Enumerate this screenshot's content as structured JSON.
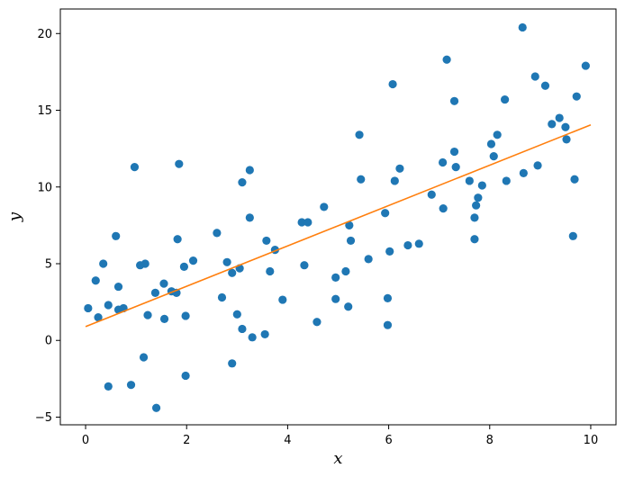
{
  "chart_data": {
    "type": "scatter",
    "title": "",
    "xlabel": "x",
    "ylabel": "y",
    "xlim": [
      -0.5,
      10.5
    ],
    "ylim": [
      -5.5,
      21.6
    ],
    "xticks": [
      0,
      2,
      4,
      6,
      8,
      10
    ],
    "xtick_labels": [
      "0",
      "2",
      "4",
      "6",
      "8",
      "10"
    ],
    "yticks": [
      -5,
      0,
      5,
      10,
      15,
      20
    ],
    "ytick_labels": [
      "−5",
      "0",
      "5",
      "10",
      "15",
      "20"
    ],
    "grid": false,
    "legend": "none",
    "series": [
      {
        "kind": "scatter",
        "color": "#1f77b4",
        "points": [
          [
            0.05,
            2.1
          ],
          [
            0.2,
            3.9
          ],
          [
            0.25,
            1.5
          ],
          [
            0.35,
            5.0
          ],
          [
            0.45,
            -3.0
          ],
          [
            0.45,
            2.3
          ],
          [
            0.6,
            6.8
          ],
          [
            0.65,
            3.5
          ],
          [
            0.65,
            2.0
          ],
          [
            0.75,
            2.1
          ],
          [
            0.9,
            -2.9
          ],
          [
            0.97,
            11.3
          ],
          [
            1.08,
            4.9
          ],
          [
            1.15,
            -1.1
          ],
          [
            1.18,
            5.0
          ],
          [
            1.23,
            1.65
          ],
          [
            1.38,
            3.1
          ],
          [
            1.4,
            -4.4
          ],
          [
            1.55,
            3.7
          ],
          [
            1.56,
            1.4
          ],
          [
            1.7,
            3.2
          ],
          [
            1.8,
            3.1
          ],
          [
            1.82,
            6.6
          ],
          [
            1.85,
            11.5
          ],
          [
            1.95,
            4.8
          ],
          [
            1.98,
            1.6
          ],
          [
            1.98,
            -2.3
          ],
          [
            2.13,
            5.2
          ],
          [
            2.6,
            7.0
          ],
          [
            2.7,
            2.8
          ],
          [
            2.8,
            5.1
          ],
          [
            2.9,
            -1.5
          ],
          [
            2.9,
            4.4
          ],
          [
            3.0,
            1.7
          ],
          [
            3.05,
            4.7
          ],
          [
            3.1,
            10.3
          ],
          [
            3.1,
            0.75
          ],
          [
            3.25,
            11.1
          ],
          [
            3.25,
            8.0
          ],
          [
            3.3,
            0.2
          ],
          [
            3.55,
            0.4
          ],
          [
            3.58,
            6.5
          ],
          [
            3.65,
            4.5
          ],
          [
            3.75,
            5.9
          ],
          [
            3.9,
            2.65
          ],
          [
            4.28,
            7.7
          ],
          [
            4.33,
            4.9
          ],
          [
            4.4,
            7.7
          ],
          [
            4.58,
            1.2
          ],
          [
            4.72,
            8.7
          ],
          [
            4.95,
            4.1
          ],
          [
            4.95,
            2.7
          ],
          [
            5.15,
            4.5
          ],
          [
            5.2,
            2.2
          ],
          [
            5.22,
            7.5
          ],
          [
            5.25,
            6.5
          ],
          [
            5.42,
            13.4
          ],
          [
            5.45,
            10.5
          ],
          [
            5.6,
            5.3
          ],
          [
            5.93,
            8.3
          ],
          [
            5.98,
            2.75
          ],
          [
            5.98,
            1.0
          ],
          [
            6.02,
            5.8
          ],
          [
            6.08,
            16.7
          ],
          [
            6.12,
            10.4
          ],
          [
            6.22,
            11.2
          ],
          [
            6.38,
            6.2
          ],
          [
            6.6,
            6.3
          ],
          [
            6.85,
            9.5
          ],
          [
            7.07,
            11.6
          ],
          [
            7.08,
            8.6
          ],
          [
            7.15,
            18.3
          ],
          [
            7.3,
            15.6
          ],
          [
            7.3,
            12.3
          ],
          [
            7.33,
            11.3
          ],
          [
            7.6,
            10.4
          ],
          [
            7.7,
            8.0
          ],
          [
            7.7,
            6.6
          ],
          [
            7.73,
            8.8
          ],
          [
            7.77,
            9.3
          ],
          [
            7.85,
            10.1
          ],
          [
            8.03,
            12.8
          ],
          [
            8.08,
            12.0
          ],
          [
            8.15,
            13.4
          ],
          [
            8.3,
            15.7
          ],
          [
            8.33,
            10.4
          ],
          [
            8.65,
            20.4
          ],
          [
            8.67,
            10.9
          ],
          [
            8.9,
            17.2
          ],
          [
            8.95,
            11.4
          ],
          [
            9.1,
            16.6
          ],
          [
            9.23,
            14.1
          ],
          [
            9.38,
            14.5
          ],
          [
            9.5,
            13.9
          ],
          [
            9.52,
            13.1
          ],
          [
            9.65,
            6.8
          ],
          [
            9.68,
            10.5
          ],
          [
            9.72,
            15.9
          ],
          [
            9.9,
            17.9
          ]
        ]
      },
      {
        "kind": "line",
        "color": "#ff7f0e",
        "points": [
          [
            0,
            0.9
          ],
          [
            10,
            14.05
          ]
        ]
      }
    ]
  }
}
